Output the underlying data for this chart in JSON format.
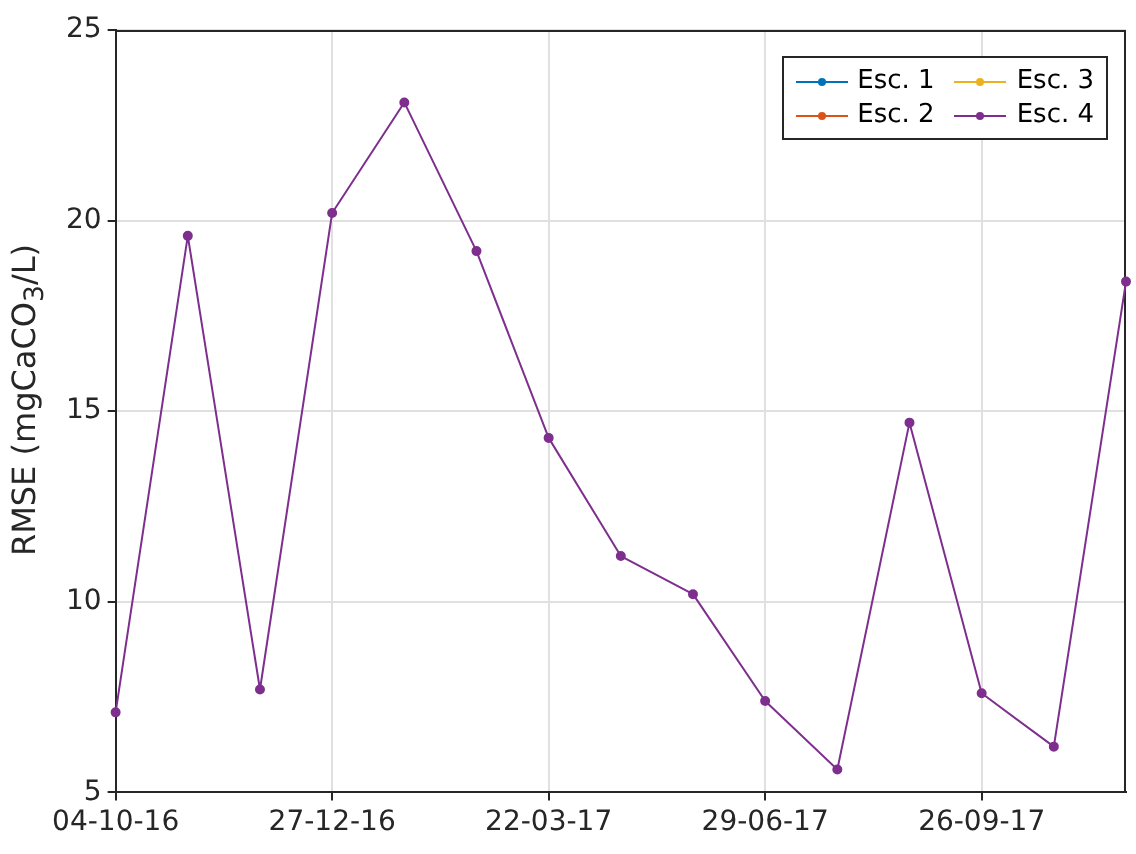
{
  "chart_data": {
    "type": "line",
    "ylabel": "RMSE (mgCaCO$_{3}$/L)",
    "categories": [
      "04-10-16",
      null,
      null,
      "27-12-16",
      null,
      null,
      "22-03-17",
      null,
      null,
      "29-06-17",
      null,
      null,
      "26-09-17",
      null,
      null
    ],
    "ylim": [
      5,
      25
    ],
    "yticks": [
      5,
      10,
      15,
      20,
      25
    ],
    "grid": true,
    "legend": "top right",
    "marker": "circle",
    "line_style": "solid",
    "series": [
      {
        "name": "Esc. 1",
        "color": "#0072bd",
        "values": [
          null,
          null,
          null,
          null,
          null,
          null,
          null,
          null,
          null,
          null,
          null,
          null,
          null,
          null,
          null
        ]
      },
      {
        "name": "Esc. 2",
        "color": "#d95319",
        "values": [
          null,
          null,
          null,
          null,
          null,
          null,
          null,
          null,
          null,
          null,
          null,
          null,
          null,
          null,
          null
        ]
      },
      {
        "name": "Esc. 3",
        "color": "#edb120",
        "values": [
          null,
          null,
          null,
          null,
          null,
          null,
          null,
          null,
          null,
          null,
          null,
          null,
          null,
          null,
          null
        ]
      },
      {
        "name": "Esc. 4",
        "color": "#7e2f8e",
        "values": [
          7.1,
          19.6,
          7.7,
          20.2,
          23.1,
          19.2,
          14.3,
          11.2,
          10.2,
          7.4,
          5.6,
          14.7,
          7.6,
          6.2,
          18.4
        ]
      }
    ]
  }
}
